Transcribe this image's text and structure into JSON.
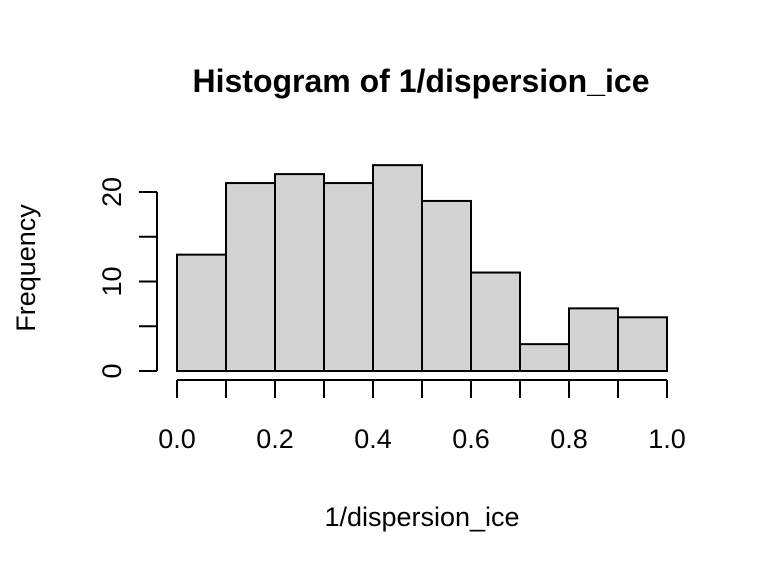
{
  "chart_data": {
    "type": "bar",
    "subtype": "histogram",
    "title": "Histogram of 1/dispersion_ice",
    "xlabel": "1/dispersion_ice",
    "ylabel": "Frequency",
    "bins": [
      {
        "from": 0.0,
        "to": 0.1,
        "count": 13
      },
      {
        "from": 0.1,
        "to": 0.2,
        "count": 21
      },
      {
        "from": 0.2,
        "to": 0.3,
        "count": 22
      },
      {
        "from": 0.3,
        "to": 0.4,
        "count": 21
      },
      {
        "from": 0.4,
        "to": 0.5,
        "count": 23
      },
      {
        "from": 0.5,
        "to": 0.6,
        "count": 19
      },
      {
        "from": 0.6,
        "to": 0.7,
        "count": 11
      },
      {
        "from": 0.7,
        "to": 0.8,
        "count": 3
      },
      {
        "from": 0.8,
        "to": 0.9,
        "count": 7
      },
      {
        "from": 0.9,
        "to": 1.0,
        "count": 6
      }
    ],
    "xlim": [
      0.0,
      1.0
    ],
    "ylim": [
      0,
      23
    ],
    "x_ticks": [
      0.0,
      0.2,
      0.4,
      0.6,
      0.8,
      1.0
    ],
    "x_tick_labels": [
      "0.0",
      "0.2",
      "0.4",
      "0.6",
      "0.8",
      "1.0"
    ],
    "x_minor_ticks": [
      0.1,
      0.3,
      0.5,
      0.7,
      0.9
    ],
    "y_ticks": [
      0,
      5,
      10,
      15,
      20
    ],
    "y_tick_labels": [
      "0",
      "",
      "10",
      "",
      "20"
    ],
    "bar_color": "#d3d3d3",
    "edge_color": "#000000",
    "grid": false,
    "legend": "none"
  }
}
